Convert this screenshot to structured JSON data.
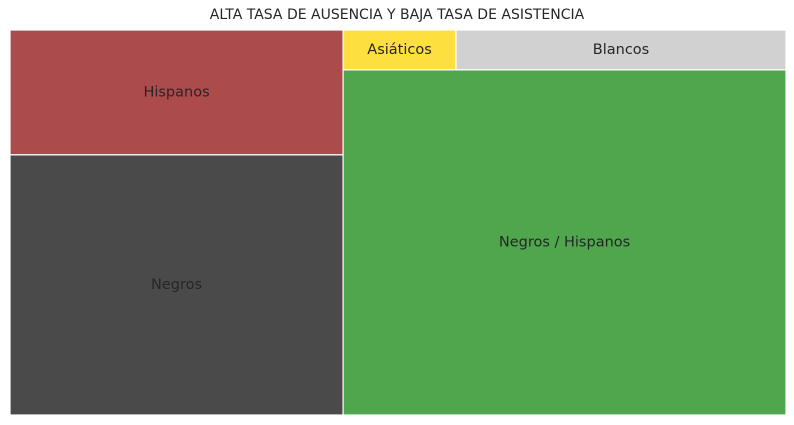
{
  "chart_data": {
    "type": "treemap",
    "title": "ALTA TASA DE AUSENCIA Y BAJA TASA DE ASISTENCIA",
    "tiles": [
      {
        "label": "Hispanos",
        "value": 12,
        "color": "#ab4b4b"
      },
      {
        "label": "Negros",
        "value": 25,
        "color": "#4a4a4a"
      },
      {
        "label": "Asiáticos",
        "value": 1.3,
        "color": "#fde03f"
      },
      {
        "label": "Blancos",
        "value": 3.8,
        "color": "#d1d1d1"
      },
      {
        "label": "Negros / Hispanos",
        "value": 44.1,
        "color": "#4fa64d"
      }
    ]
  }
}
